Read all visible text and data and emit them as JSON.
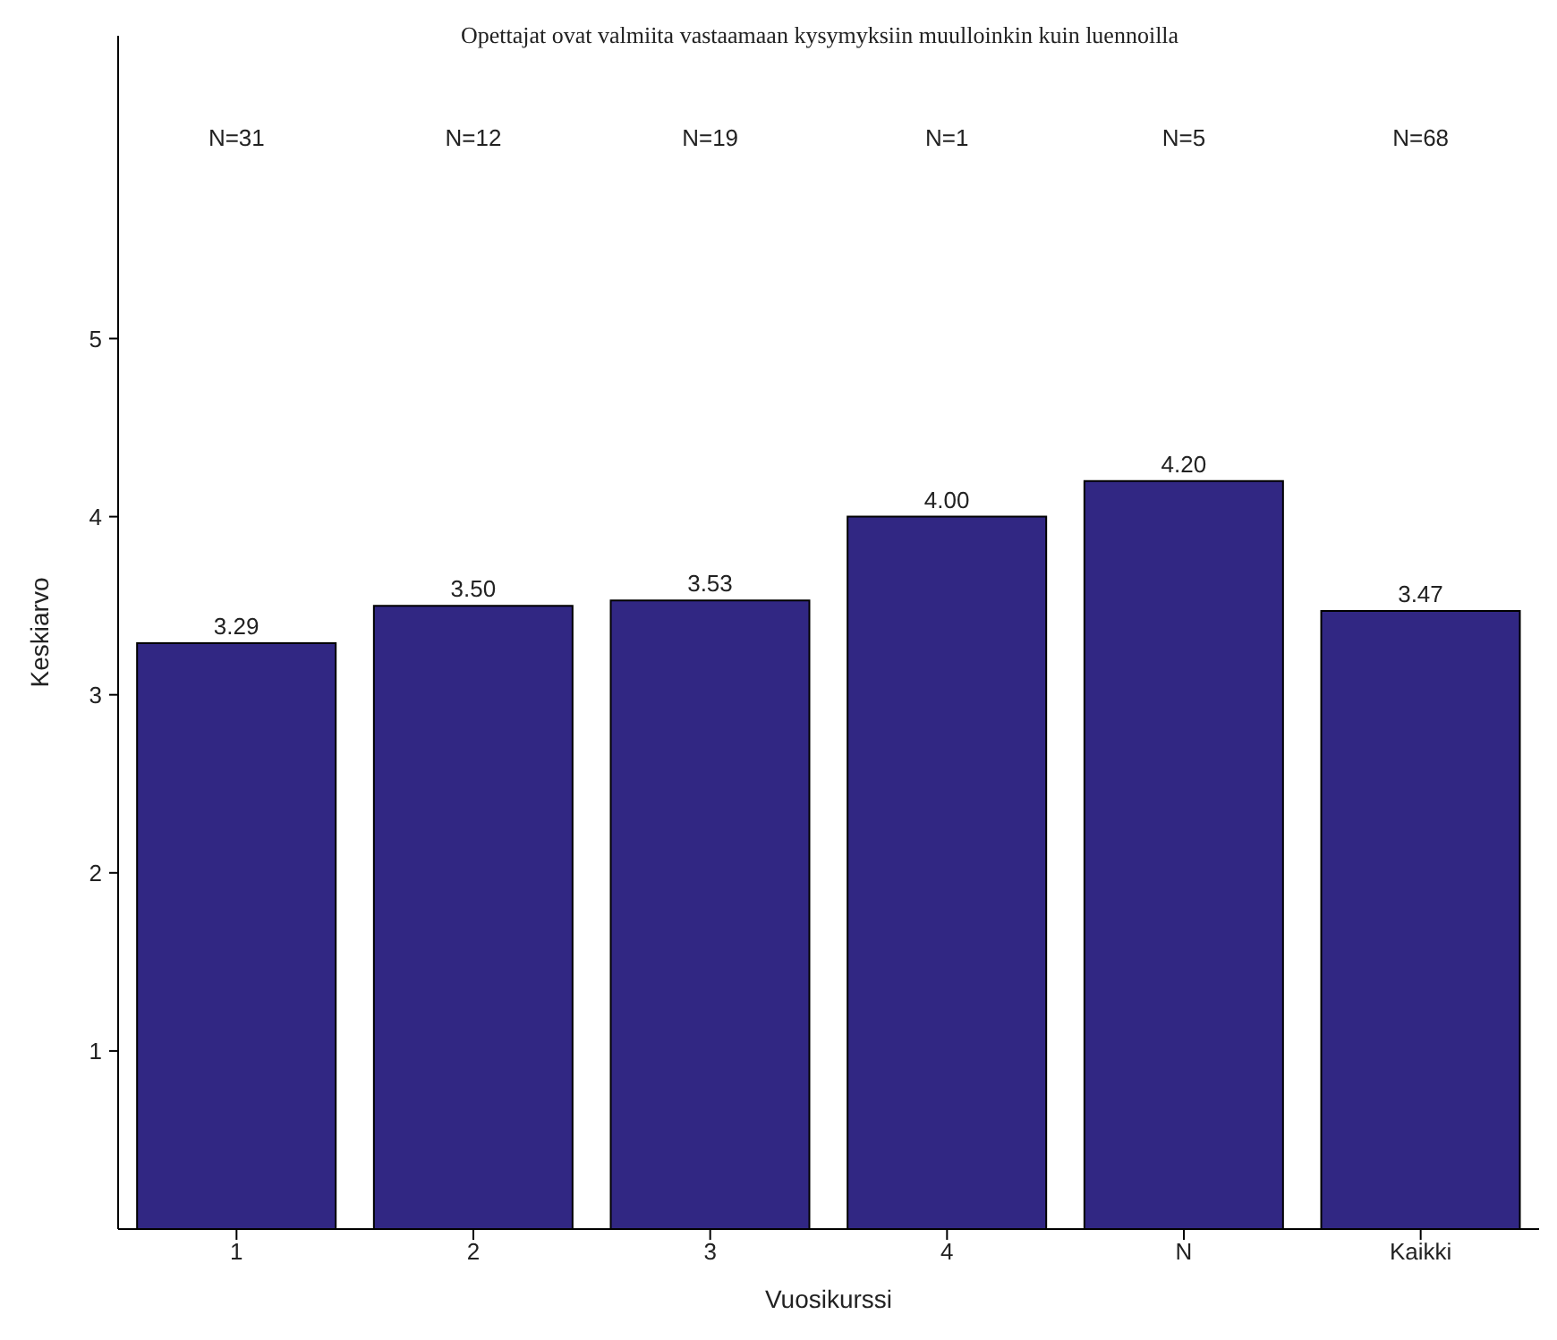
{
  "chart_data": {
    "type": "bar",
    "title": "Opettajat ovat valmiita vastaamaan kysymyksiin muulloinkin kuin luennoilla",
    "xlabel": "Vuosikurssi",
    "ylabel": "Keskiarvo",
    "categories": [
      "1",
      "2",
      "3",
      "4",
      "N",
      "Kaikki"
    ],
    "values": [
      3.29,
      3.5,
      3.53,
      4.0,
      4.2,
      3.47
    ],
    "value_labels": [
      "3.29",
      "3.50",
      "3.53",
      "4.00",
      "4.20",
      "3.47"
    ],
    "color": "#312783",
    "ylim": [
      0,
      6.7
    ],
    "yticks": [
      1,
      2,
      3,
      4,
      5
    ],
    "grid": false,
    "legend": false,
    "annotations": [
      "N=31",
      "N=12",
      "N=19",
      "N=1",
      "N=5",
      "N=68"
    ]
  }
}
